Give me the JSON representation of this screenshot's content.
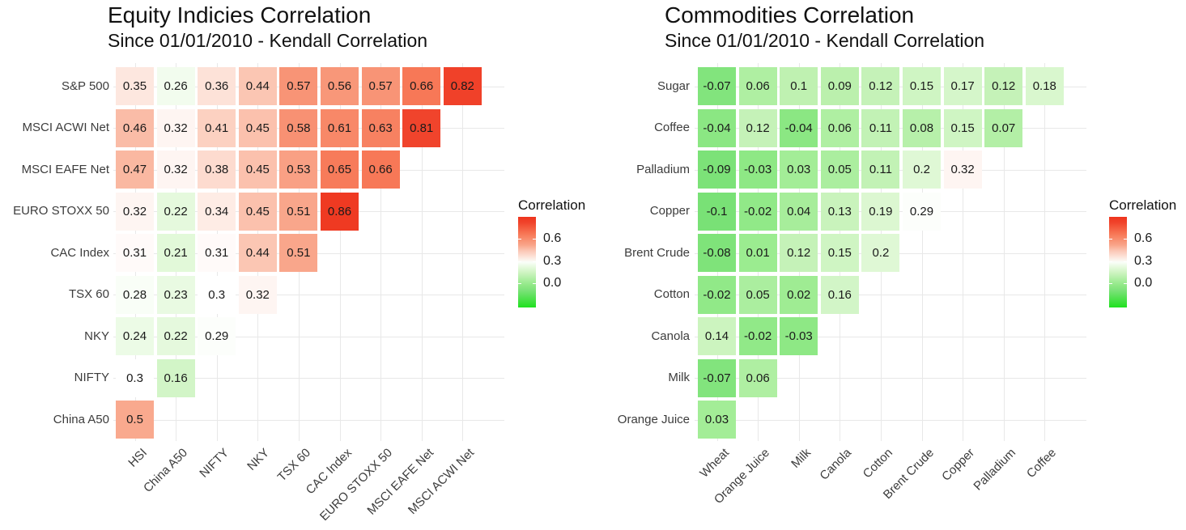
{
  "figure": {
    "background": "#ffffff",
    "gridline_color": "#e8e8e8",
    "text_color": "#1a1a1a"
  },
  "chart_data": [
    {
      "type": "heatmap",
      "title": "Equity Indicies Correlation",
      "subtitle": "Since 01/01/2010 - Kendall Correlation",
      "x_categories": [
        "HSI",
        "China A50",
        "NIFTY",
        "NKY",
        "TSX 60",
        "CAC Index",
        "EURO STOXX 50",
        "MSCI EAFE Net",
        "MSCI ACWI Net"
      ],
      "y_categories": [
        "S&P 500",
        "MSCI ACWI Net",
        "MSCI EAFE Net",
        "EURO STOXX 50",
        "CAC Index",
        "TSX 60",
        "NKY",
        "NIFTY",
        "China A50"
      ],
      "values": [
        [
          0.35,
          0.26,
          0.36,
          0.44,
          0.57,
          0.56,
          0.57,
          0.66,
          0.82
        ],
        [
          0.46,
          0.32,
          0.41,
          0.45,
          0.58,
          0.61,
          0.63,
          0.81
        ],
        [
          0.47,
          0.32,
          0.38,
          0.45,
          0.53,
          0.65,
          0.66
        ],
        [
          0.32,
          0.22,
          0.34,
          0.45,
          0.51,
          0.86
        ],
        [
          0.31,
          0.21,
          0.31,
          0.44,
          0.51
        ],
        [
          0.28,
          0.23,
          0.3,
          0.32
        ],
        [
          0.24,
          0.22,
          0.29
        ],
        [
          0.3,
          0.16
        ],
        [
          0.5
        ]
      ],
      "legend": {
        "title": "Correlation",
        "ticks": [
          "0.6",
          "0.3",
          "0.0"
        ]
      },
      "grid": true,
      "legend_position": "right"
    },
    {
      "type": "heatmap",
      "title": "Commodities Correlation",
      "subtitle": "Since 01/01/2010 - Kendall Correlation",
      "x_categories": [
        "Wheat",
        "Orange Juice",
        "Milk",
        "Canola",
        "Cotton",
        "Brent Crude",
        "Copper",
        "Palladium",
        "Coffee"
      ],
      "y_categories": [
        "Sugar",
        "Coffee",
        "Palladium",
        "Copper",
        "Brent Crude",
        "Cotton",
        "Canola",
        "Milk",
        "Orange Juice"
      ],
      "values": [
        [
          -0.07,
          0.06,
          0.1,
          0.09,
          0.12,
          0.15,
          0.17,
          0.12,
          0.18
        ],
        [
          -0.04,
          0.12,
          -0.04,
          0.06,
          0.11,
          0.08,
          0.15,
          0.07
        ],
        [
          -0.09,
          -0.03,
          0.03,
          0.05,
          0.11,
          0.2,
          0.32
        ],
        [
          -0.1,
          -0.02,
          0.04,
          0.13,
          0.19,
          0.29
        ],
        [
          -0.08,
          0.01,
          0.12,
          0.15,
          0.2
        ],
        [
          -0.02,
          0.05,
          0.02,
          0.16
        ],
        [
          0.14,
          -0.02,
          -0.03
        ],
        [
          -0.07,
          0.06
        ],
        [
          0.03
        ]
      ],
      "legend": {
        "title": "Correlation",
        "ticks": [
          "0.6",
          "0.3",
          "0.0"
        ]
      },
      "grid": true,
      "legend_position": "right"
    }
  ],
  "colorscale": {
    "midpoint": 0.3,
    "legend_top_value": 0.89,
    "legend_bottom_value": -0.32,
    "anchors": [
      [
        -0.34,
        "#17E117"
      ],
      [
        -0.1,
        "#79E176"
      ],
      [
        0.0,
        "#97EB8C"
      ],
      [
        0.1,
        "#BFF1B1"
      ],
      [
        0.2,
        "#DFF8D5"
      ],
      [
        0.3,
        "#FFFFFF"
      ],
      [
        0.36,
        "#FDE2D8"
      ],
      [
        0.44,
        "#FBC6B3"
      ],
      [
        0.5,
        "#F9A98E"
      ],
      [
        0.57,
        "#F89476"
      ],
      [
        0.66,
        "#F77857"
      ],
      [
        0.82,
        "#F04129"
      ],
      [
        0.92,
        "#ED2F17"
      ]
    ]
  }
}
